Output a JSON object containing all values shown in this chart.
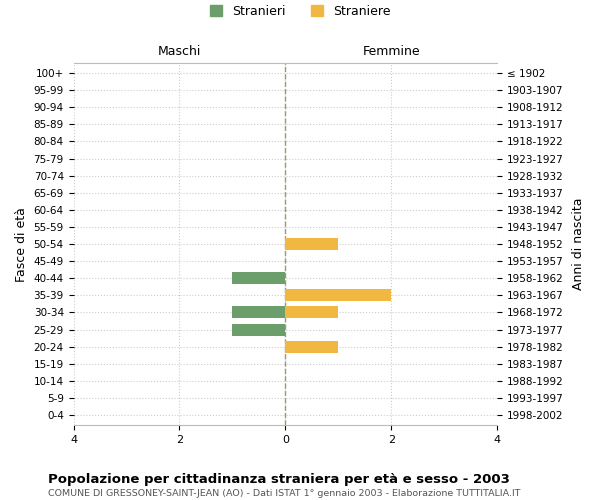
{
  "age_groups": [
    "100+",
    "95-99",
    "90-94",
    "85-89",
    "80-84",
    "75-79",
    "70-74",
    "65-69",
    "60-64",
    "55-59",
    "50-54",
    "45-49",
    "40-44",
    "35-39",
    "30-34",
    "25-29",
    "20-24",
    "15-19",
    "10-14",
    "5-9",
    "0-4"
  ],
  "birth_years": [
    "≤ 1902",
    "1903-1907",
    "1908-1912",
    "1913-1917",
    "1918-1922",
    "1923-1927",
    "1928-1932",
    "1933-1937",
    "1938-1942",
    "1943-1947",
    "1948-1952",
    "1953-1957",
    "1958-1962",
    "1963-1967",
    "1968-1972",
    "1973-1977",
    "1978-1982",
    "1983-1987",
    "1988-1992",
    "1993-1997",
    "1998-2002"
  ],
  "males": [
    0,
    0,
    0,
    0,
    0,
    0,
    0,
    0,
    0,
    0,
    0,
    0,
    1,
    0,
    1,
    1,
    0,
    0,
    0,
    0,
    0
  ],
  "females": [
    0,
    0,
    0,
    0,
    0,
    0,
    0,
    0,
    0,
    0,
    1,
    0,
    0,
    2,
    1,
    0,
    1,
    0,
    0,
    0,
    0
  ],
  "male_color": "#6b9e6b",
  "female_color": "#f0b840",
  "xlim": 4,
  "ylabel_left": "Fasce di età",
  "ylabel_right": "Anni di nascita",
  "label_maschi": "Maschi",
  "label_femmine": "Femmine",
  "legend_stranieri": "Stranieri",
  "legend_straniere": "Straniere",
  "title": "Popolazione per cittadinanza straniera per età e sesso - 2003",
  "subtitle": "COMUNE DI GRESSONEY-SAINT-JEAN (AO) - Dati ISTAT 1° gennaio 2003 - Elaborazione TUTTITALIA.IT",
  "bg_color": "#ffffff",
  "grid_color": "#cccccc",
  "bar_height": 0.7,
  "dashed_color": "#999977"
}
